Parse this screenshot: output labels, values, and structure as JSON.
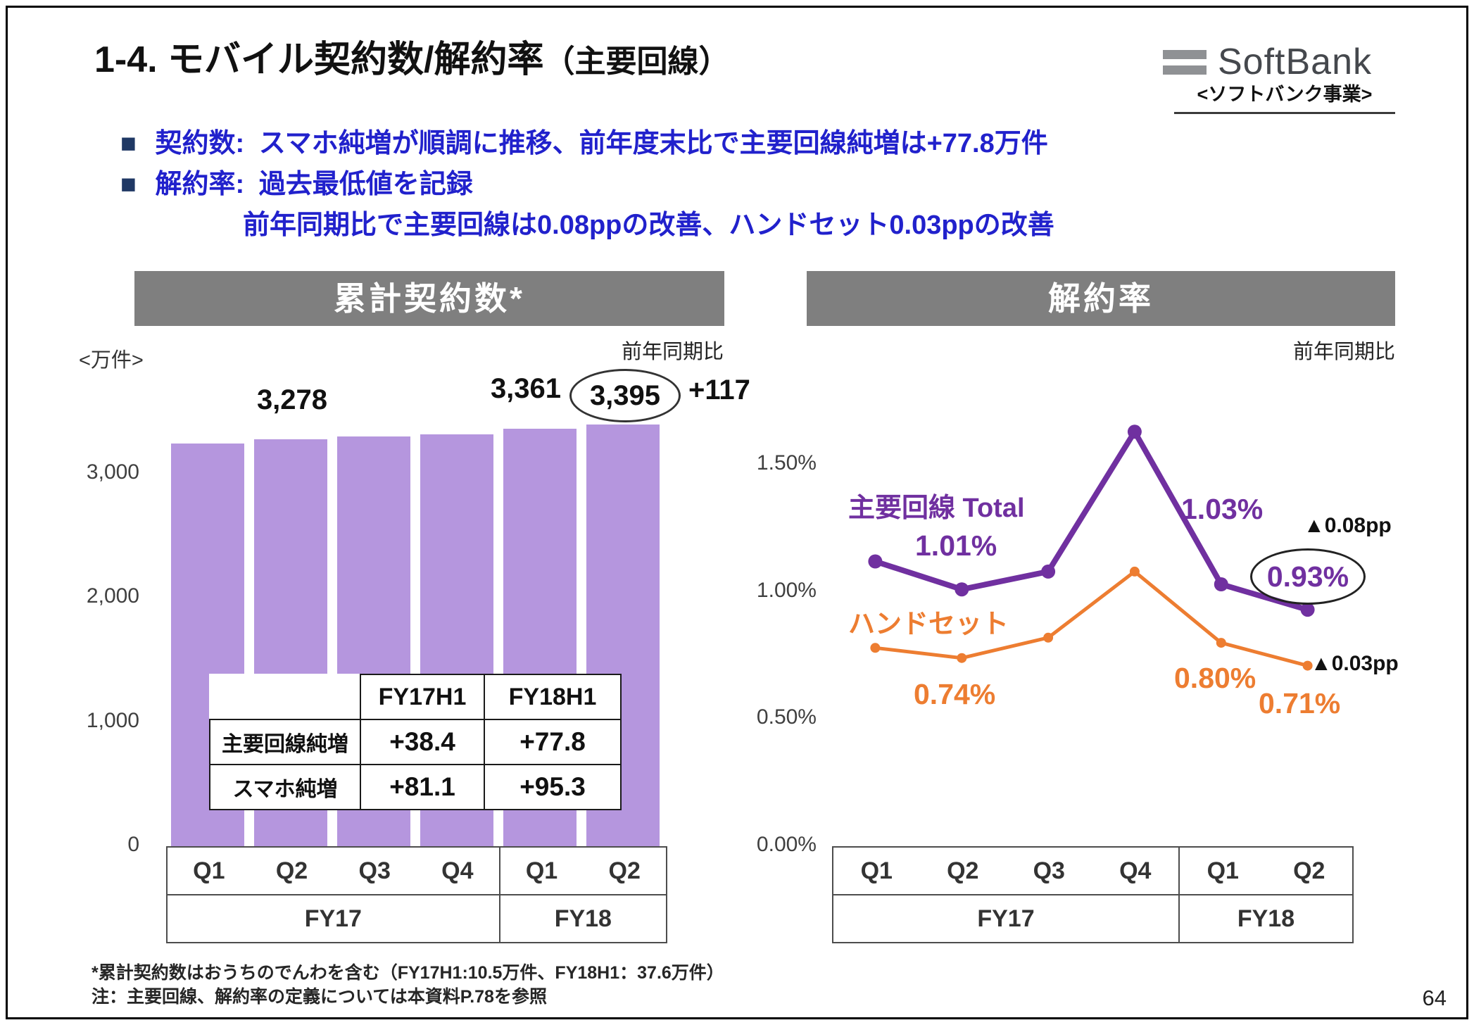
{
  "page": {
    "title_main": "1-4. モバイル契約数/解約率",
    "title_paren": "（主要回線）",
    "logo_text": "SoftBank",
    "logo_subtitle": "<ソフトバンク事業>",
    "page_number": "64"
  },
  "bullets": [
    {
      "marker": "■",
      "label": "契約数:",
      "text": "スマホ純増が順調に推移、前年度末比で主要回線純増は+77.8万件"
    },
    {
      "marker": "■",
      "label": "解約率:",
      "text": "過去最低値を記録"
    },
    {
      "marker": "",
      "label": "",
      "text": "前年同期比で主要回線は0.08ppの改善、ハンドセット0.03ppの改善"
    }
  ],
  "footnotes": [
    "*累計契約数はおうちのでんわを含む（FY17H1:10.5万件、FY18H1：37.6万件）",
    "注：主要回線、解約率の定義については本資料P.78を参照"
  ],
  "colors": {
    "bar_purple": "#b596de",
    "line_main_purple": "#7030a0",
    "line_handset_orange": "#ed7d31",
    "panel_header_gray": "#7f7f7f",
    "bullet_blue": "#2121cc",
    "bullet_square_navy": "#1f3864"
  },
  "chart_data": [
    {
      "type": "bar",
      "title": "累計契約数*",
      "unit_label": "<万件>",
      "comparison_label": "前年同期比",
      "categories": [
        "Q1",
        "Q2",
        "Q3",
        "Q4",
        "Q1",
        "Q2"
      ],
      "group_labels": [
        "FY17",
        "FY18"
      ],
      "values": [
        3245,
        3278,
        3300,
        3317,
        3361,
        3395
      ],
      "bar_color": "#b596de",
      "ylim": [
        0,
        3630
      ],
      "yticks": [
        0,
        1000,
        2000,
        3000
      ],
      "ytick_labels": [
        "0",
        "1,000",
        "2,000",
        "3,000"
      ],
      "grid": false,
      "value_labels": {
        "fy17_q2": "3,278",
        "fy18_q1": "3,361",
        "fy18_q2_circled": "3,395",
        "yoy_delta": "+117"
      },
      "table": {
        "headers": [
          "",
          "FY17H1",
          "FY18H1"
        ],
        "rows": [
          {
            "label": "主要回線純増",
            "values": [
              "+38.4",
              "+77.8"
            ]
          },
          {
            "label": "スマホ純増",
            "values": [
              "+81.1",
              "+95.3"
            ]
          }
        ]
      }
    },
    {
      "type": "line",
      "title": "解約率",
      "comparison_label": "前年同期比",
      "categories": [
        "Q1",
        "Q2",
        "Q3",
        "Q4",
        "Q1",
        "Q2"
      ],
      "group_labels": [
        "FY17",
        "FY18"
      ],
      "series": [
        {
          "name": "主要回線 Total",
          "color": "#7030a0",
          "values": [
            1.12,
            1.01,
            1.08,
            1.63,
            1.03,
            0.93
          ]
        },
        {
          "name": "ハンドセット",
          "color": "#ed7d31",
          "values": [
            0.78,
            0.74,
            0.82,
            1.08,
            0.8,
            0.71
          ]
        }
      ],
      "ylim": [
        0,
        1.7
      ],
      "yticks": [
        0,
        0.5,
        1.0,
        1.5
      ],
      "ytick_labels": [
        "0.00%",
        "0.50%",
        "1.00%",
        "1.50%"
      ],
      "grid": false,
      "legend_position": "on-chart",
      "value_labels": {
        "main_fy17_q2": "1.01%",
        "main_fy18_q1": "1.03%",
        "main_fy18_q2_circled": "0.93%",
        "main_improvement": "▲0.08pp",
        "handset_fy17_q2": "0.74%",
        "handset_fy18_q1": "0.80%",
        "handset_fy18_q2": "0.71%",
        "handset_improvement": "▲0.03pp"
      }
    }
  ]
}
